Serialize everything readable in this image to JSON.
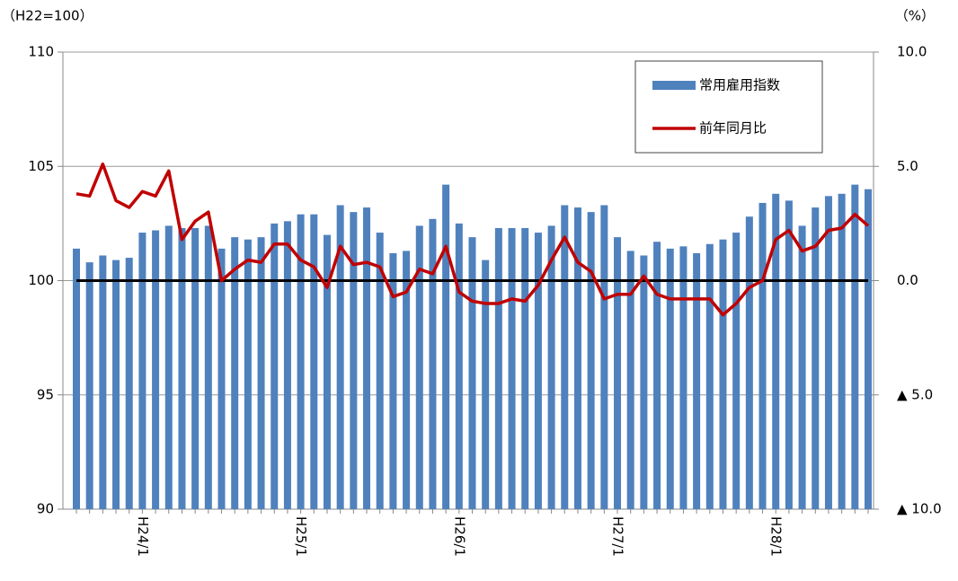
{
  "chart_data": {
    "type": "bar_line",
    "y_unit_label": "（H22=100）",
    "y2_unit_label": "（%）",
    "categories": [
      null,
      null,
      null,
      null,
      null,
      "H24/1",
      null,
      null,
      null,
      null,
      null,
      null,
      null,
      null,
      null,
      null,
      null,
      "H25/1",
      null,
      null,
      null,
      null,
      null,
      null,
      null,
      null,
      null,
      null,
      null,
      "H26/1",
      null,
      null,
      null,
      null,
      null,
      null,
      null,
      null,
      null,
      null,
      null,
      "H27/1",
      null,
      null,
      null,
      null,
      null,
      null,
      null,
      null,
      null,
      null,
      null,
      "H28/1",
      null,
      null,
      null,
      null,
      null,
      null,
      null
    ],
    "series": [
      {
        "name": "常用雇用指数",
        "type": "bar",
        "color": "#4f81bd",
        "axis": "y",
        "values": [
          101.4,
          100.8,
          101.1,
          100.9,
          101.0,
          102.1,
          102.2,
          102.4,
          102.3,
          102.3,
          102.4,
          101.4,
          101.9,
          101.8,
          101.9,
          102.5,
          102.6,
          102.9,
          102.9,
          102.0,
          103.3,
          103.0,
          103.2,
          102.1,
          101.2,
          101.3,
          102.4,
          102.7,
          104.2,
          102.5,
          101.9,
          100.9,
          102.3,
          102.3,
          102.3,
          102.1,
          102.4,
          103.3,
          103.2,
          103.0,
          103.3,
          101.9,
          101.3,
          101.1,
          101.7,
          101.4,
          101.5,
          101.2,
          101.6,
          101.8,
          102.1,
          102.8,
          103.4,
          103.8,
          103.5,
          102.4,
          103.2,
          103.7,
          103.8,
          104.2,
          104.0
        ]
      },
      {
        "name": "前年同月比",
        "type": "line",
        "color": "#c00000",
        "axis": "y2",
        "values": [
          3.8,
          3.7,
          5.1,
          3.5,
          3.2,
          3.9,
          3.7,
          4.8,
          1.8,
          2.6,
          3.0,
          0.0,
          0.5,
          0.9,
          0.8,
          1.6,
          1.6,
          0.9,
          0.6,
          -0.3,
          1.5,
          0.7,
          0.8,
          0.6,
          -0.7,
          -0.5,
          0.5,
          0.3,
          1.5,
          -0.5,
          -0.9,
          -1.0,
          -1.0,
          -0.8,
          -0.9,
          -0.2,
          0.9,
          1.9,
          0.8,
          0.4,
          -0.8,
          -0.6,
          -0.6,
          0.2,
          -0.6,
          -0.8,
          -0.8,
          -0.8,
          -0.8,
          -1.5,
          -1.0,
          -0.3,
          0.0,
          1.8,
          2.2,
          1.3,
          1.5,
          2.2,
          2.3,
          2.9,
          2.4
        ]
      }
    ],
    "ylim": [
      90,
      110
    ],
    "yticks": [
      90,
      95,
      100,
      105,
      110
    ],
    "y2lim": [
      -10,
      10
    ],
    "y2ticks": [
      {
        "value": -10,
        "label": "▲ 10.0"
      },
      {
        "value": -5,
        "label": "▲ 5.0"
      },
      {
        "value": 0,
        "label": "0.0"
      },
      {
        "value": 5,
        "label": "5.0"
      },
      {
        "value": 10,
        "label": "10.0"
      }
    ],
    "grid": true,
    "zero_line": true,
    "legend": "upper right"
  }
}
